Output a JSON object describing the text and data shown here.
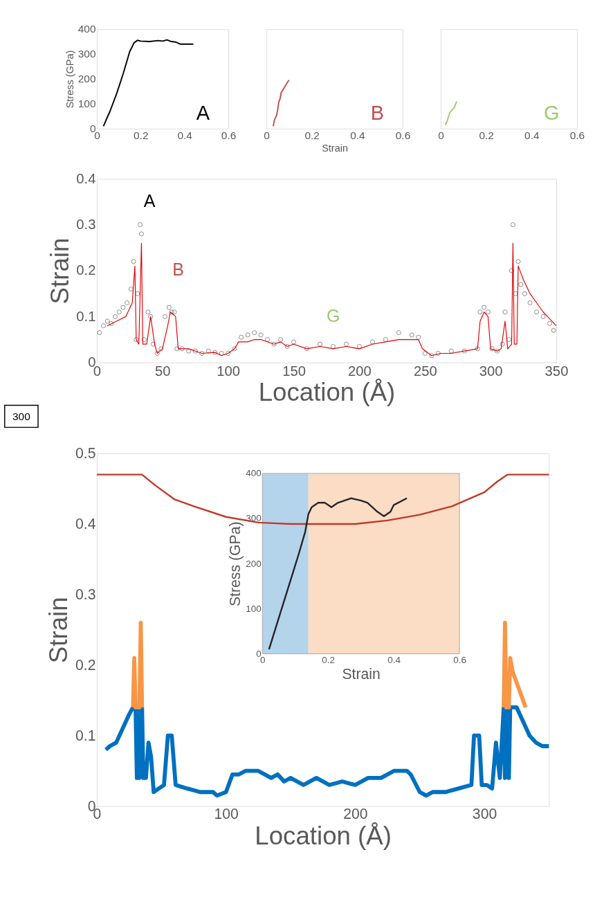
{
  "chart_data": [
    {
      "type": "line",
      "ylabel": "Stress (GPa)",
      "xlim": [
        0,
        0.6
      ],
      "xticks": [
        0,
        0.2,
        0.4,
        0.6
      ],
      "ylim": [
        0,
        400
      ],
      "yticks": [
        0,
        100,
        200,
        300,
        400
      ],
      "annotations": [
        "A"
      ],
      "series": [
        {
          "color": "#000000",
          "x": [
            0.03,
            0.06,
            0.09,
            0.12,
            0.15,
            0.17,
            0.185,
            0.2,
            0.24,
            0.28,
            0.3,
            0.32,
            0.34,
            0.36,
            0.38,
            0.41,
            0.44
          ],
          "values": [
            10,
            70,
            140,
            220,
            310,
            345,
            355,
            352,
            350,
            354,
            352,
            357,
            350,
            348,
            340,
            340,
            340
          ]
        }
      ]
    },
    {
      "type": "line",
      "xlabel": "Strain",
      "xlim": [
        0,
        0.6
      ],
      "xticks": [
        0,
        0.2,
        0.4,
        0.6
      ],
      "ylim": [
        0,
        400
      ],
      "yticks": [
        0,
        100,
        200,
        300,
        400
      ],
      "tick_labels": "x",
      "annotations": [
        "B"
      ],
      "series": [
        {
          "color": "#c0504d",
          "x": [
            0.03,
            0.035,
            0.045,
            0.05,
            0.055,
            0.06,
            0.065,
            0.075,
            0.085,
            0.095,
            0.1
          ],
          "values": [
            10,
            35,
            55,
            80,
            110,
            120,
            145,
            160,
            175,
            190,
            195
          ]
        }
      ]
    },
    {
      "type": "line",
      "xlim": [
        0,
        0.6
      ],
      "xticks": [
        0,
        0.2,
        0.4,
        0.6
      ],
      "ylim": [
        0,
        400
      ],
      "yticks": [
        0,
        100,
        200,
        300,
        400
      ],
      "tick_labels": "x",
      "annotations": [
        "G"
      ],
      "series": [
        {
          "color": "#9bcb6d",
          "x": [
            0.02,
            0.03,
            0.04,
            0.05,
            0.06,
            0.07
          ],
          "values": [
            15,
            35,
            65,
            75,
            85,
            110
          ]
        }
      ]
    },
    {
      "type": "scatter",
      "xlabel": "Location (Å)",
      "ylabel": "Strain",
      "xlim": [
        0,
        350
      ],
      "xticks": [
        0,
        50,
        100,
        150,
        200,
        250,
        300,
        350
      ],
      "ylim": [
        0,
        0.4
      ],
      "yticks": [
        0,
        0.1,
        0.2,
        0.3,
        0.4
      ],
      "annotations": [
        "A",
        "B",
        "G",
        "300"
      ],
      "series": [
        {
          "type": "scatter",
          "marker": "circle",
          "color": "#595959",
          "x": [
            2,
            5,
            8,
            11,
            14,
            17,
            20,
            23,
            26,
            28,
            30,
            31,
            33,
            34,
            36,
            39,
            41,
            43,
            46,
            49,
            52,
            55,
            57,
            59,
            61,
            65,
            70,
            75,
            80,
            85,
            90,
            95,
            100,
            105,
            110,
            115,
            120,
            125,
            130,
            135,
            140,
            145,
            150,
            160,
            170,
            180,
            190,
            200,
            210,
            220,
            230,
            240,
            245,
            250,
            255,
            260,
            270,
            280,
            290,
            292,
            295,
            298,
            301,
            305,
            309,
            311,
            314,
            316,
            317,
            319,
            321,
            323,
            326,
            330,
            335,
            340,
            345,
            348
          ],
          "values": [
            0.065,
            0.08,
            0.09,
            0.085,
            0.1,
            0.11,
            0.12,
            0.13,
            0.16,
            0.22,
            0.05,
            0.15,
            0.3,
            0.28,
            0.05,
            0.11,
            0.1,
            0.04,
            0.02,
            0.03,
            0.1,
            0.12,
            0.11,
            0.11,
            0.03,
            0.03,
            0.025,
            0.025,
            0.02,
            0.025,
            0.022,
            0.02,
            0.02,
            0.03,
            0.055,
            0.06,
            0.065,
            0.06,
            0.05,
            0.04,
            0.05,
            0.035,
            0.045,
            0.03,
            0.04,
            0.035,
            0.04,
            0.035,
            0.045,
            0.05,
            0.065,
            0.06,
            0.055,
            0.02,
            0.015,
            0.02,
            0.025,
            0.025,
            0.03,
            0.11,
            0.12,
            0.11,
            0.03,
            0.025,
            0.04,
            0.11,
            0.05,
            0.2,
            0.3,
            0.15,
            0.22,
            0.17,
            0.15,
            0.13,
            0.11,
            0.1,
            0.085,
            0.07
          ]
        },
        {
          "type": "line",
          "color": "#e00000",
          "x": [
            8,
            15,
            22,
            27,
            29,
            30,
            32,
            34,
            35,
            38,
            41,
            44,
            46,
            50,
            54,
            56,
            60,
            62,
            70,
            80,
            90,
            95,
            100,
            105,
            108,
            115,
            120,
            125,
            135,
            140,
            145,
            150,
            160,
            170,
            180,
            190,
            200,
            210,
            220,
            230,
            240,
            245,
            248,
            255,
            262,
            270,
            280,
            290,
            292,
            295,
            298,
            300,
            305,
            308,
            311,
            313,
            316,
            317,
            318,
            320,
            321,
            325,
            330,
            335,
            340,
            345,
            350
          ],
          "values": [
            0.08,
            0.09,
            0.1,
            0.13,
            0.21,
            0.05,
            0.04,
            0.26,
            0.04,
            0.04,
            0.1,
            0.04,
            0.02,
            0.03,
            0.08,
            0.11,
            0.1,
            0.03,
            0.03,
            0.02,
            0.022,
            0.015,
            0.02,
            0.03,
            0.045,
            0.045,
            0.05,
            0.05,
            0.04,
            0.045,
            0.035,
            0.04,
            0.03,
            0.035,
            0.03,
            0.035,
            0.03,
            0.04,
            0.045,
            0.05,
            0.05,
            0.05,
            0.03,
            0.015,
            0.02,
            0.02,
            0.025,
            0.03,
            0.09,
            0.11,
            0.1,
            0.03,
            0.025,
            0.03,
            0.09,
            0.03,
            0.04,
            0.26,
            0.04,
            0.04,
            0.21,
            0.18,
            0.15,
            0.13,
            0.11,
            0.095,
            0.08
          ]
        }
      ]
    },
    {
      "type": "line",
      "xlabel": "Location (Å)",
      "ylabel": "Strain",
      "xlim": [
        0,
        350
      ],
      "xticks": [
        0,
        100,
        200,
        300
      ],
      "ylim": [
        0,
        0.5
      ],
      "yticks": [
        0,
        0.1,
        0.2,
        0.3,
        0.4,
        0.5
      ],
      "series": [
        {
          "color": "#c0392b",
          "x": [
            0,
            20,
            35,
            45,
            60,
            75,
            100,
            125,
            150,
            175,
            200,
            225,
            250,
            275,
            300,
            310,
            318,
            350
          ],
          "values": [
            0.47,
            0.47,
            0.47,
            0.455,
            0.435,
            0.425,
            0.41,
            0.402,
            0.4,
            0.4,
            0.4,
            0.405,
            0.413,
            0.425,
            0.445,
            0.46,
            0.47,
            0.47
          ]
        },
        {
          "color": "#0070c0",
          "x": [
            7,
            10,
            15,
            20,
            25,
            28,
            30,
            31,
            32,
            33,
            35,
            36,
            38,
            40,
            42,
            44,
            48,
            52,
            55,
            58,
            61,
            70,
            80,
            90,
            93,
            100,
            105,
            110,
            115,
            125,
            135,
            140,
            145,
            150,
            160,
            170,
            180,
            190,
            200,
            210,
            220,
            230,
            240,
            243,
            250,
            255,
            260,
            270,
            280,
            290,
            292,
            296,
            298,
            302,
            306,
            309,
            312,
            315,
            316,
            318,
            319,
            320,
            325,
            330,
            335,
            340,
            345,
            350
          ],
          "values": [
            0.08,
            0.085,
            0.09,
            0.11,
            0.13,
            0.14,
            0.14,
            0.04,
            0.14,
            0.04,
            0.14,
            0.04,
            0.04,
            0.09,
            0.07,
            0.02,
            0.025,
            0.03,
            0.1,
            0.1,
            0.03,
            0.025,
            0.02,
            0.02,
            0.015,
            0.02,
            0.045,
            0.045,
            0.05,
            0.05,
            0.04,
            0.045,
            0.035,
            0.04,
            0.03,
            0.04,
            0.03,
            0.035,
            0.03,
            0.04,
            0.04,
            0.05,
            0.05,
            0.045,
            0.02,
            0.015,
            0.02,
            0.02,
            0.025,
            0.03,
            0.1,
            0.1,
            0.03,
            0.03,
            0.025,
            0.09,
            0.04,
            0.14,
            0.04,
            0.14,
            0.04,
            0.14,
            0.14,
            0.12,
            0.1,
            0.09,
            0.085,
            0.085
          ]
        },
        {
          "color": "#f79646",
          "x": [
            28,
            29,
            30,
            33,
            34,
            35
          ],
          "values": [
            0.14,
            0.21,
            0.14,
            0.14,
            0.26,
            0.14
          ]
        },
        {
          "color": "#f79646",
          "x": [
            315,
            316,
            317,
            319,
            320,
            322,
            326,
            330,
            332
          ],
          "values": [
            0.14,
            0.26,
            0.14,
            0.14,
            0.21,
            0.19,
            0.17,
            0.15,
            0.14
          ]
        }
      ]
    },
    {
      "type": "line",
      "xlabel": "Strain",
      "ylabel": "Stress (GPa)",
      "xlim": [
        0,
        0.6
      ],
      "xticks": [
        0,
        0.2,
        0.4,
        0.6
      ],
      "ylim": [
        0,
        400
      ],
      "yticks": [
        0,
        100,
        200,
        300,
        400
      ],
      "bands": [
        {
          "axis": "x",
          "from": 0,
          "to": 0.14,
          "color": "#b4d4ec"
        },
        {
          "axis": "x",
          "from": 0.14,
          "to": 0.6,
          "color": "#fbdcc4"
        }
      ],
      "series": [
        {
          "color": "#262626",
          "x": [
            0.02,
            0.05,
            0.08,
            0.11,
            0.13,
            0.14,
            0.15,
            0.17,
            0.19,
            0.21,
            0.23,
            0.27,
            0.3,
            0.32,
            0.35,
            0.37,
            0.39,
            0.4,
            0.44
          ],
          "values": [
            10,
            80,
            150,
            220,
            270,
            310,
            325,
            335,
            335,
            325,
            335,
            345,
            340,
            335,
            315,
            305,
            315,
            330,
            345
          ]
        }
      ]
    }
  ]
}
